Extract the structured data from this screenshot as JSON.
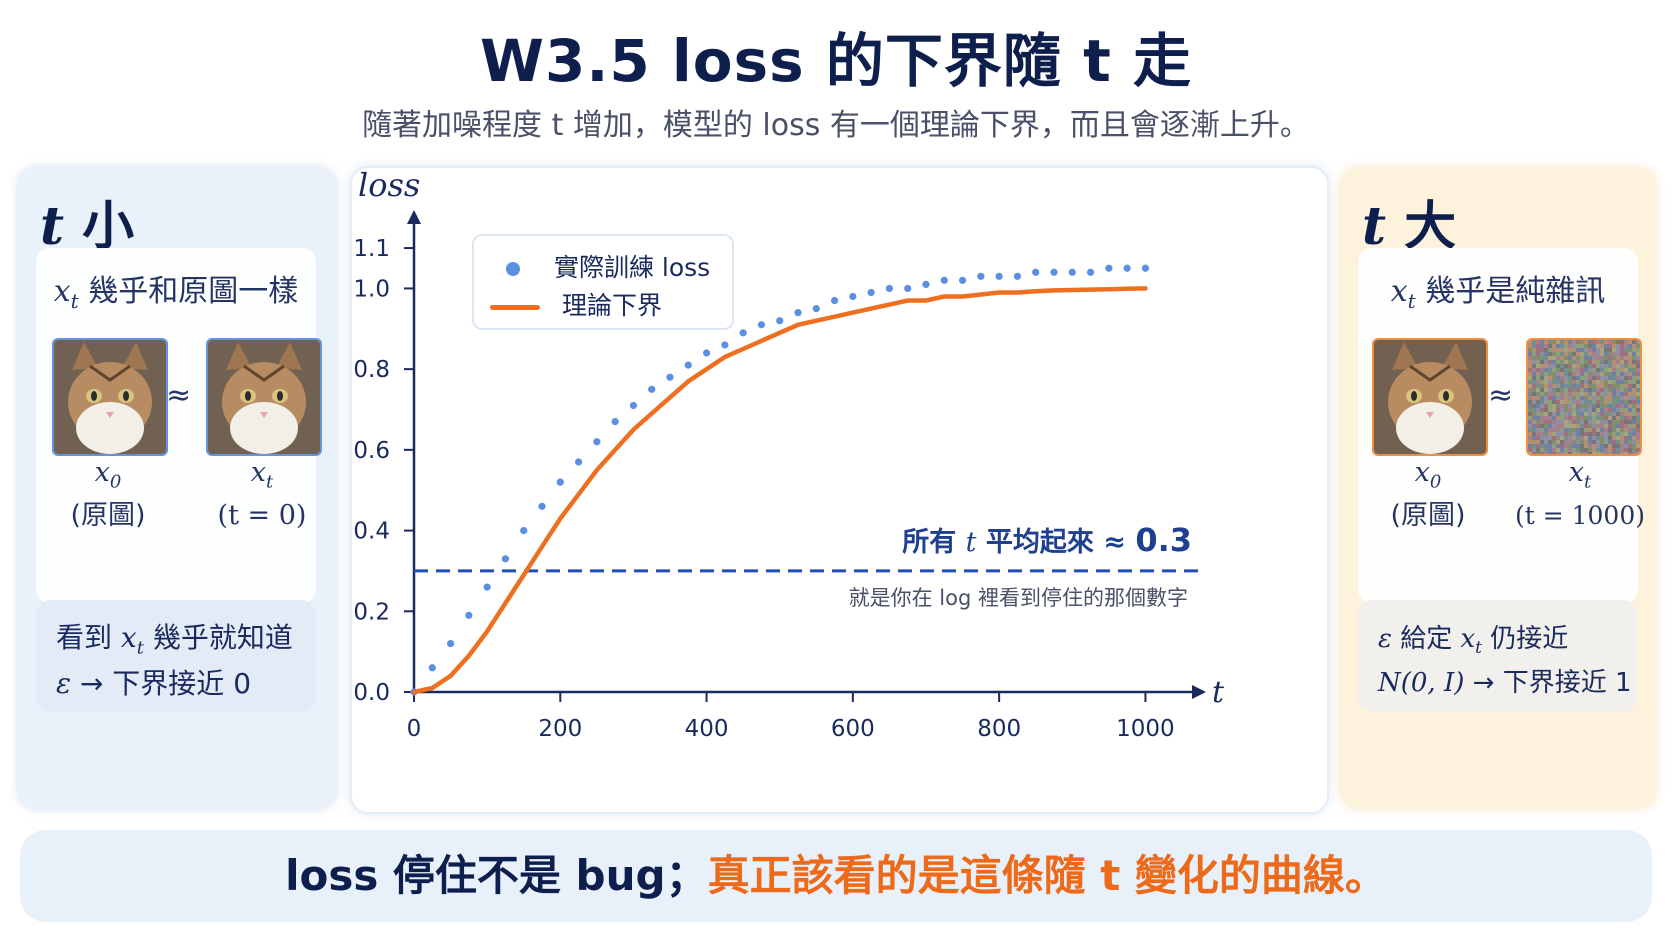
{
  "header": {
    "title": "W3.5 loss 的下界隨 t 走",
    "subtitle": "隨著加噪程度 t 增加，模型的 loss 有一個理論下界，而且會逐漸上升。"
  },
  "left_panel": {
    "heading_var": "t",
    "heading_text": "小",
    "card_title_var": "x",
    "card_title_sub": "t",
    "card_title_text": "幾乎和原圖一樣",
    "approx": "≈",
    "img1_var": "x",
    "img1_sub": "0",
    "img1_caption": "(原圖)",
    "img2_var": "x",
    "img2_sub": "t",
    "img2_caption": "(t = 0)",
    "note_line1_pre": "看到",
    "note_line1_var": "x",
    "note_line1_sub": "t",
    "note_line1_post": "幾乎就知道",
    "note_line2_var": "ε",
    "note_line2_post": "→ 下界接近 0"
  },
  "right_panel": {
    "heading_var": "t",
    "heading_text": "大",
    "card_title_var": "x",
    "card_title_sub": "t",
    "card_title_text": "幾乎是純雜訊",
    "approx": "≈",
    "img1_var": "x",
    "img1_sub": "0",
    "img1_caption": "(原圖)",
    "img2_var": "x",
    "img2_sub": "t",
    "img2_caption": "(t = 1000)",
    "note_line1_var": "ε",
    "note_line1_mid": "給定",
    "note_line1_var2": "x",
    "note_line1_sub": "t",
    "note_line1_post": "仍接近",
    "note_line2_var": "N(0, I)",
    "note_line2_post": "→ 下界接近 1"
  },
  "chart_data": {
    "type": "scatter",
    "ylabel": "loss",
    "xlabel": "t",
    "xlim": [
      0,
      1050
    ],
    "ylim": [
      0,
      1.12
    ],
    "x_ticks": [
      0,
      200,
      400,
      600,
      800,
      1000
    ],
    "x_tick_labels": [
      "0",
      "200",
      "400",
      "600",
      "800",
      "1000"
    ],
    "y_ticks": [
      0.0,
      0.2,
      0.4,
      0.6,
      0.8,
      1.0,
      1.1
    ],
    "y_tick_labels": [
      "0.0",
      "0.2",
      "0.4",
      "0.6",
      "0.8",
      "1.0",
      "1.1"
    ],
    "legend": {
      "position": "top-left",
      "entries": [
        "實際訓練 loss",
        "理論下界"
      ]
    },
    "series": [
      {
        "name": "實際訓練 loss",
        "kind": "scatter",
        "color": "#5b8fe0",
        "x": [
          0,
          25,
          50,
          75,
          100,
          125,
          150,
          175,
          200,
          225,
          250,
          275,
          300,
          325,
          350,
          375,
          400,
          425,
          450,
          475,
          500,
          525,
          550,
          575,
          600,
          625,
          650,
          675,
          700,
          725,
          750,
          775,
          800,
          825,
          850,
          875,
          900,
          925,
          950,
          975,
          1000
        ],
        "y": [
          0.0,
          0.06,
          0.12,
          0.19,
          0.26,
          0.33,
          0.4,
          0.46,
          0.52,
          0.57,
          0.62,
          0.67,
          0.71,
          0.75,
          0.78,
          0.81,
          0.84,
          0.86,
          0.89,
          0.91,
          0.92,
          0.94,
          0.95,
          0.97,
          0.98,
          0.99,
          1.0,
          1.0,
          1.01,
          1.02,
          1.02,
          1.03,
          1.03,
          1.03,
          1.04,
          1.04,
          1.04,
          1.04,
          1.05,
          1.05,
          1.05
        ]
      },
      {
        "name": "理論下界",
        "kind": "line",
        "color": "#ee6f1f",
        "x": [
          0,
          25,
          50,
          75,
          100,
          125,
          150,
          175,
          200,
          225,
          250,
          275,
          300,
          325,
          350,
          375,
          400,
          425,
          450,
          475,
          500,
          525,
          550,
          575,
          600,
          625,
          650,
          675,
          700,
          725,
          750,
          775,
          800,
          825,
          850,
          875,
          900,
          925,
          950,
          975,
          1000
        ],
        "y": [
          0.0,
          0.01,
          0.04,
          0.09,
          0.15,
          0.22,
          0.29,
          0.36,
          0.43,
          0.49,
          0.55,
          0.6,
          0.65,
          0.69,
          0.73,
          0.77,
          0.8,
          0.83,
          0.85,
          0.87,
          0.89,
          0.91,
          0.92,
          0.93,
          0.94,
          0.95,
          0.96,
          0.97,
          0.97,
          0.98,
          0.98,
          0.985,
          0.99,
          0.99,
          0.993,
          0.995,
          0.996,
          0.997,
          0.998,
          0.999,
          1.0
        ]
      }
    ],
    "reference_line": {
      "y": 0.3,
      "color": "#1f4fb3",
      "label_pre": "所有",
      "label_var": "t",
      "label_post": "平均起來 ≈",
      "label_value": "0.3",
      "note": "就是你在 log 裡看到停住的那個數字"
    }
  },
  "bottom": {
    "text_plain": "loss 停住不是 bug；",
    "text_highlight": "真正該看的是這條隨 t 變化的曲線。"
  },
  "colors": {
    "accent_blue": "#1f4fb3",
    "accent_orange": "#ee6f1f",
    "scatter_blue": "#5b8fe0"
  }
}
